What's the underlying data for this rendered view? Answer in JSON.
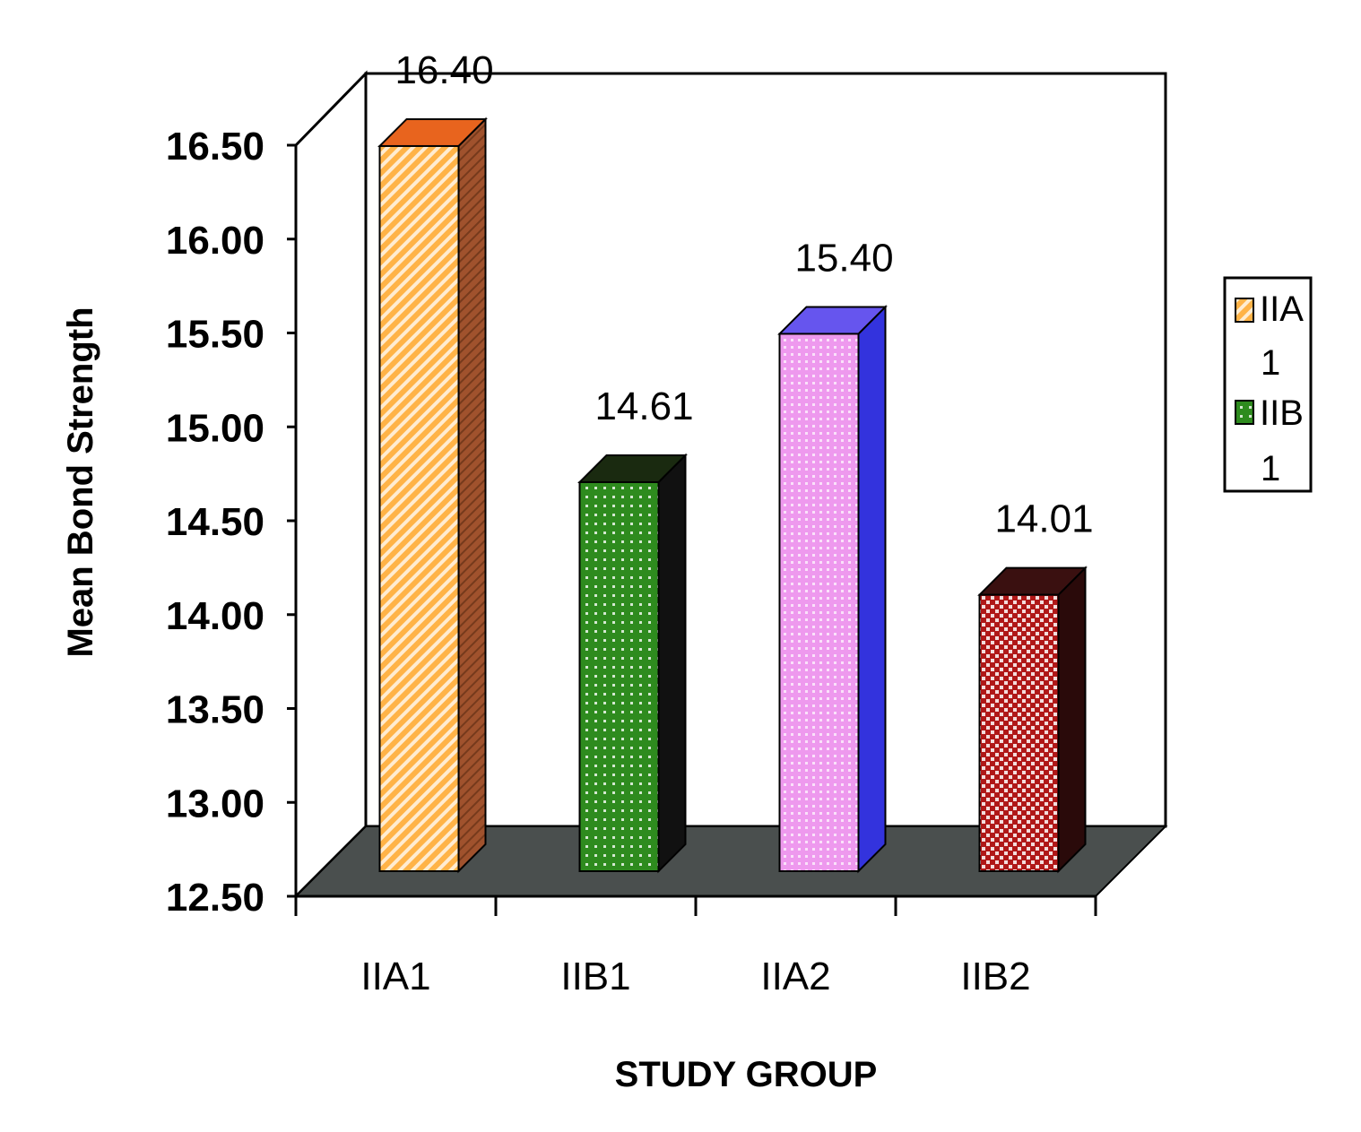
{
  "chart_data": {
    "type": "bar",
    "categories": [
      "IIA1",
      "IIB1",
      "IIA2",
      "IIB2"
    ],
    "values": [
      16.4,
      14.61,
      15.4,
      14.01
    ],
    "data_labels": [
      "16.40",
      "14.61",
      "15.40",
      "14.01"
    ],
    "xlabel": "STUDY GROUP",
    "ylabel": "Mean Bond Strength",
    "ylim": [
      12.5,
      16.5
    ],
    "yticks": [
      "12.50",
      "13.00",
      "13.50",
      "14.00",
      "14.50",
      "15.00",
      "15.50",
      "16.00",
      "16.50"
    ],
    "three_d": true,
    "grid": false,
    "legend": {
      "placement": "right",
      "entries": [
        {
          "line1": "IIA",
          "line2": "1"
        },
        {
          "line1": "IIB",
          "line2": "1"
        }
      ]
    },
    "colors": {
      "bars_front": [
        "#ffb347",
        "#2e8b1e",
        "#f0a0f0",
        "#b01818"
      ],
      "bars_side": [
        "#a0522d",
        "#111111",
        "#3333dd",
        "#2a0a0a"
      ],
      "bars_top": [
        "#e8641e",
        "#1a2a10",
        "#6655ee",
        "#3a1010"
      ],
      "floor": "#4a4f4e"
    }
  }
}
